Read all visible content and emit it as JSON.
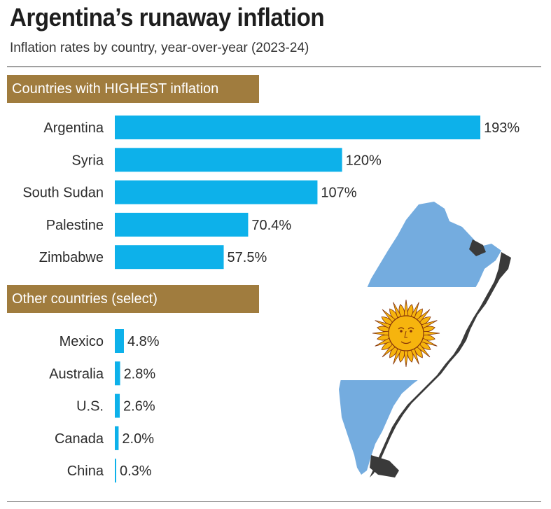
{
  "title": "Argentina’s runaway inflation",
  "subtitle": "Inflation rates by country, year-over-year (2023-24)",
  "colors": {
    "bar": "#0db1ea",
    "header_bg": "#a07c3e",
    "header_text": "#ffffff",
    "flag_blue": "#74acdf",
    "flag_white": "#ffffff",
    "sun": "#f6b40e",
    "sun_outline": "#85340a",
    "islands": "#3a3a3a"
  },
  "map_icon": "argentina-flag-map",
  "chart_data": {
    "type": "bar",
    "orientation": "horizontal",
    "value_format": "percent",
    "groups": [
      {
        "header": "Countries with HIGHEST inflation",
        "categories": [
          "Argentina",
          "Syria",
          "South Sudan",
          "Palestine",
          "Zimbabwe"
        ],
        "values": [
          193,
          120,
          107,
          70.4,
          57.5
        ],
        "value_labels": [
          "193%",
          "120%",
          "107%",
          "70.4%",
          "57.5%"
        ]
      },
      {
        "header": "Other countries (select)",
        "categories": [
          "Mexico",
          "Australia",
          "U.S.",
          "Canada",
          "China"
        ],
        "values": [
          4.8,
          2.8,
          2.6,
          2.0,
          0.3
        ],
        "value_labels": [
          "4.8%",
          "2.8%",
          "2.6%",
          "2.0%",
          "0.3%"
        ]
      }
    ]
  }
}
